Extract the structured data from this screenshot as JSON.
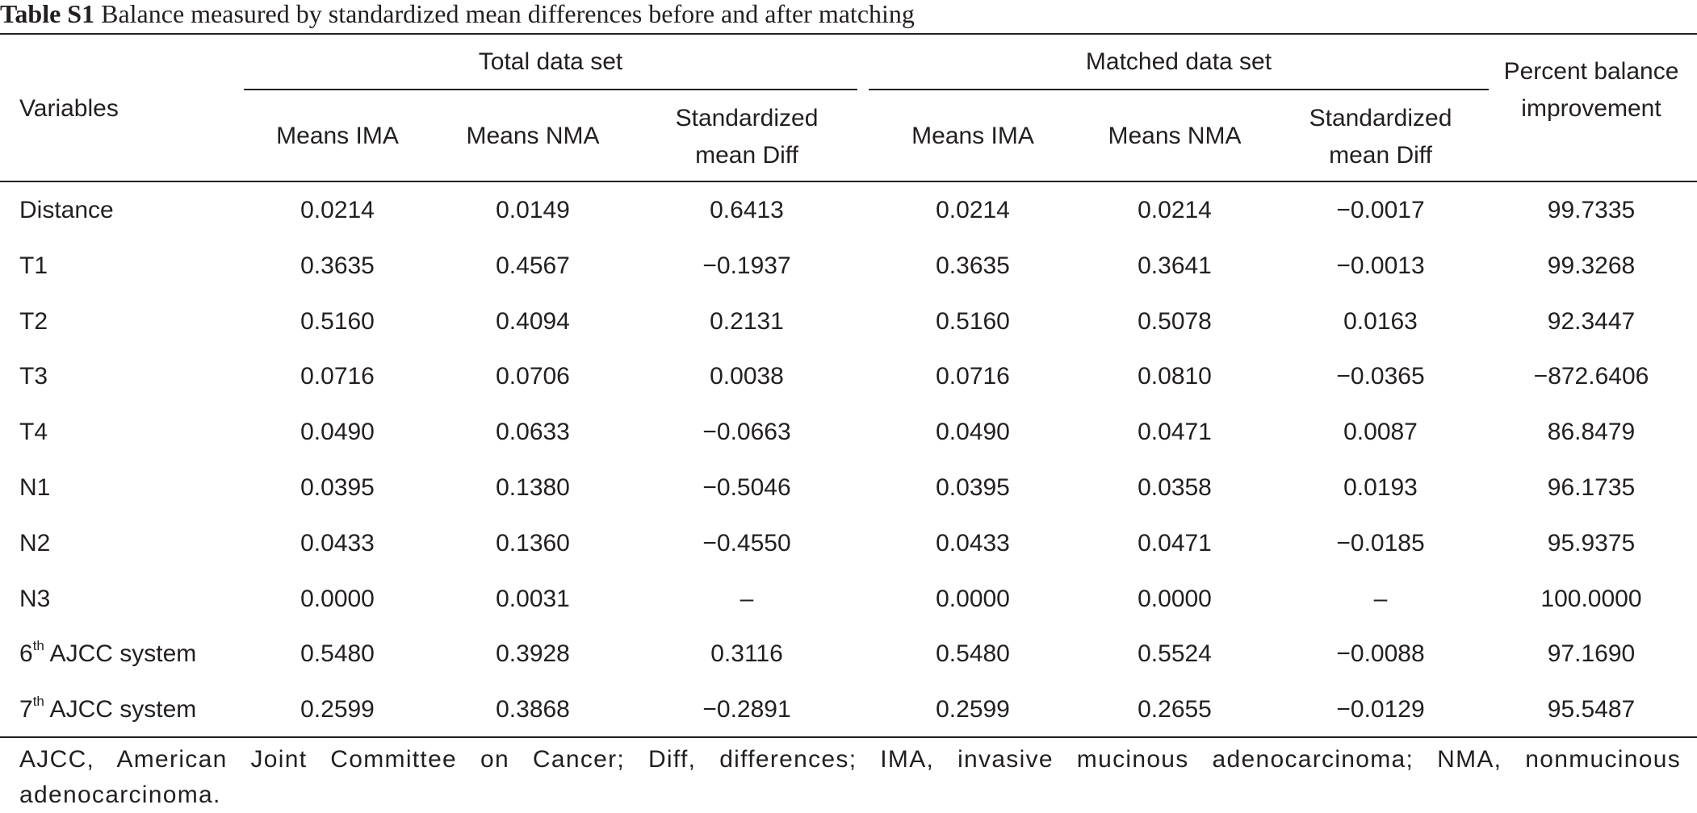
{
  "caption": {
    "label": "Table S1",
    "text": "Balance measured by standardized mean differences before and after matching"
  },
  "header": {
    "variables": "Variables",
    "group_total": "Total data set",
    "group_matched": "Matched data set",
    "percent": "Percent balance improvement",
    "means_ima": "Means IMA",
    "means_nma": "Means NMA",
    "smd": "Standardized mean Diff"
  },
  "rows": [
    {
      "variable": "Distance",
      "sup": "",
      "suffix": "",
      "total_ima": "0.0214",
      "total_nma": "0.0149",
      "total_smd": "0.6413",
      "matched_ima": "0.0214",
      "matched_nma": "0.0214",
      "matched_smd": "−0.0017",
      "improvement": "99.7335"
    },
    {
      "variable": "T1",
      "sup": "",
      "suffix": "",
      "total_ima": "0.3635",
      "total_nma": "0.4567",
      "total_smd": "−0.1937",
      "matched_ima": "0.3635",
      "matched_nma": "0.3641",
      "matched_smd": "−0.0013",
      "improvement": "99.3268"
    },
    {
      "variable": "T2",
      "sup": "",
      "suffix": "",
      "total_ima": "0.5160",
      "total_nma": "0.4094",
      "total_smd": "0.2131",
      "matched_ima": "0.5160",
      "matched_nma": "0.5078",
      "matched_smd": "0.0163",
      "improvement": "92.3447"
    },
    {
      "variable": "T3",
      "sup": "",
      "suffix": "",
      "total_ima": "0.0716",
      "total_nma": "0.0706",
      "total_smd": "0.0038",
      "matched_ima": "0.0716",
      "matched_nma": "0.0810",
      "matched_smd": "−0.0365",
      "improvement": "−872.6406"
    },
    {
      "variable": "T4",
      "sup": "",
      "suffix": "",
      "total_ima": "0.0490",
      "total_nma": "0.0633",
      "total_smd": "−0.0663",
      "matched_ima": "0.0490",
      "matched_nma": "0.0471",
      "matched_smd": "0.0087",
      "improvement": "86.8479"
    },
    {
      "variable": "N1",
      "sup": "",
      "suffix": "",
      "total_ima": "0.0395",
      "total_nma": "0.1380",
      "total_smd": "−0.5046",
      "matched_ima": "0.0395",
      "matched_nma": "0.0358",
      "matched_smd": "0.0193",
      "improvement": "96.1735"
    },
    {
      "variable": "N2",
      "sup": "",
      "suffix": "",
      "total_ima": "0.0433",
      "total_nma": "0.1360",
      "total_smd": "−0.4550",
      "matched_ima": "0.0433",
      "matched_nma": "0.0471",
      "matched_smd": "−0.0185",
      "improvement": "95.9375"
    },
    {
      "variable": "N3",
      "sup": "",
      "suffix": "",
      "total_ima": "0.0000",
      "total_nma": "0.0031",
      "total_smd": "–",
      "matched_ima": "0.0000",
      "matched_nma": "0.0000",
      "matched_smd": "–",
      "improvement": "100.0000"
    },
    {
      "variable": "6",
      "sup": "th",
      "suffix": " AJCC system",
      "total_ima": "0.5480",
      "total_nma": "0.3928",
      "total_smd": "0.3116",
      "matched_ima": "0.5480",
      "matched_nma": "0.5524",
      "matched_smd": "−0.0088",
      "improvement": "97.1690"
    },
    {
      "variable": "7",
      "sup": "th",
      "suffix": " AJCC system",
      "total_ima": "0.2599",
      "total_nma": "0.3868",
      "total_smd": "−0.2891",
      "matched_ima": "0.2599",
      "matched_nma": "0.2655",
      "matched_smd": "−0.0129",
      "improvement": "95.5487"
    }
  ],
  "footnote": "AJCC, American Joint Committee on Cancer; Diff, differences; IMA, invasive mucinous adenocarcinoma; NMA, nonmucinous adenocarcinoma."
}
